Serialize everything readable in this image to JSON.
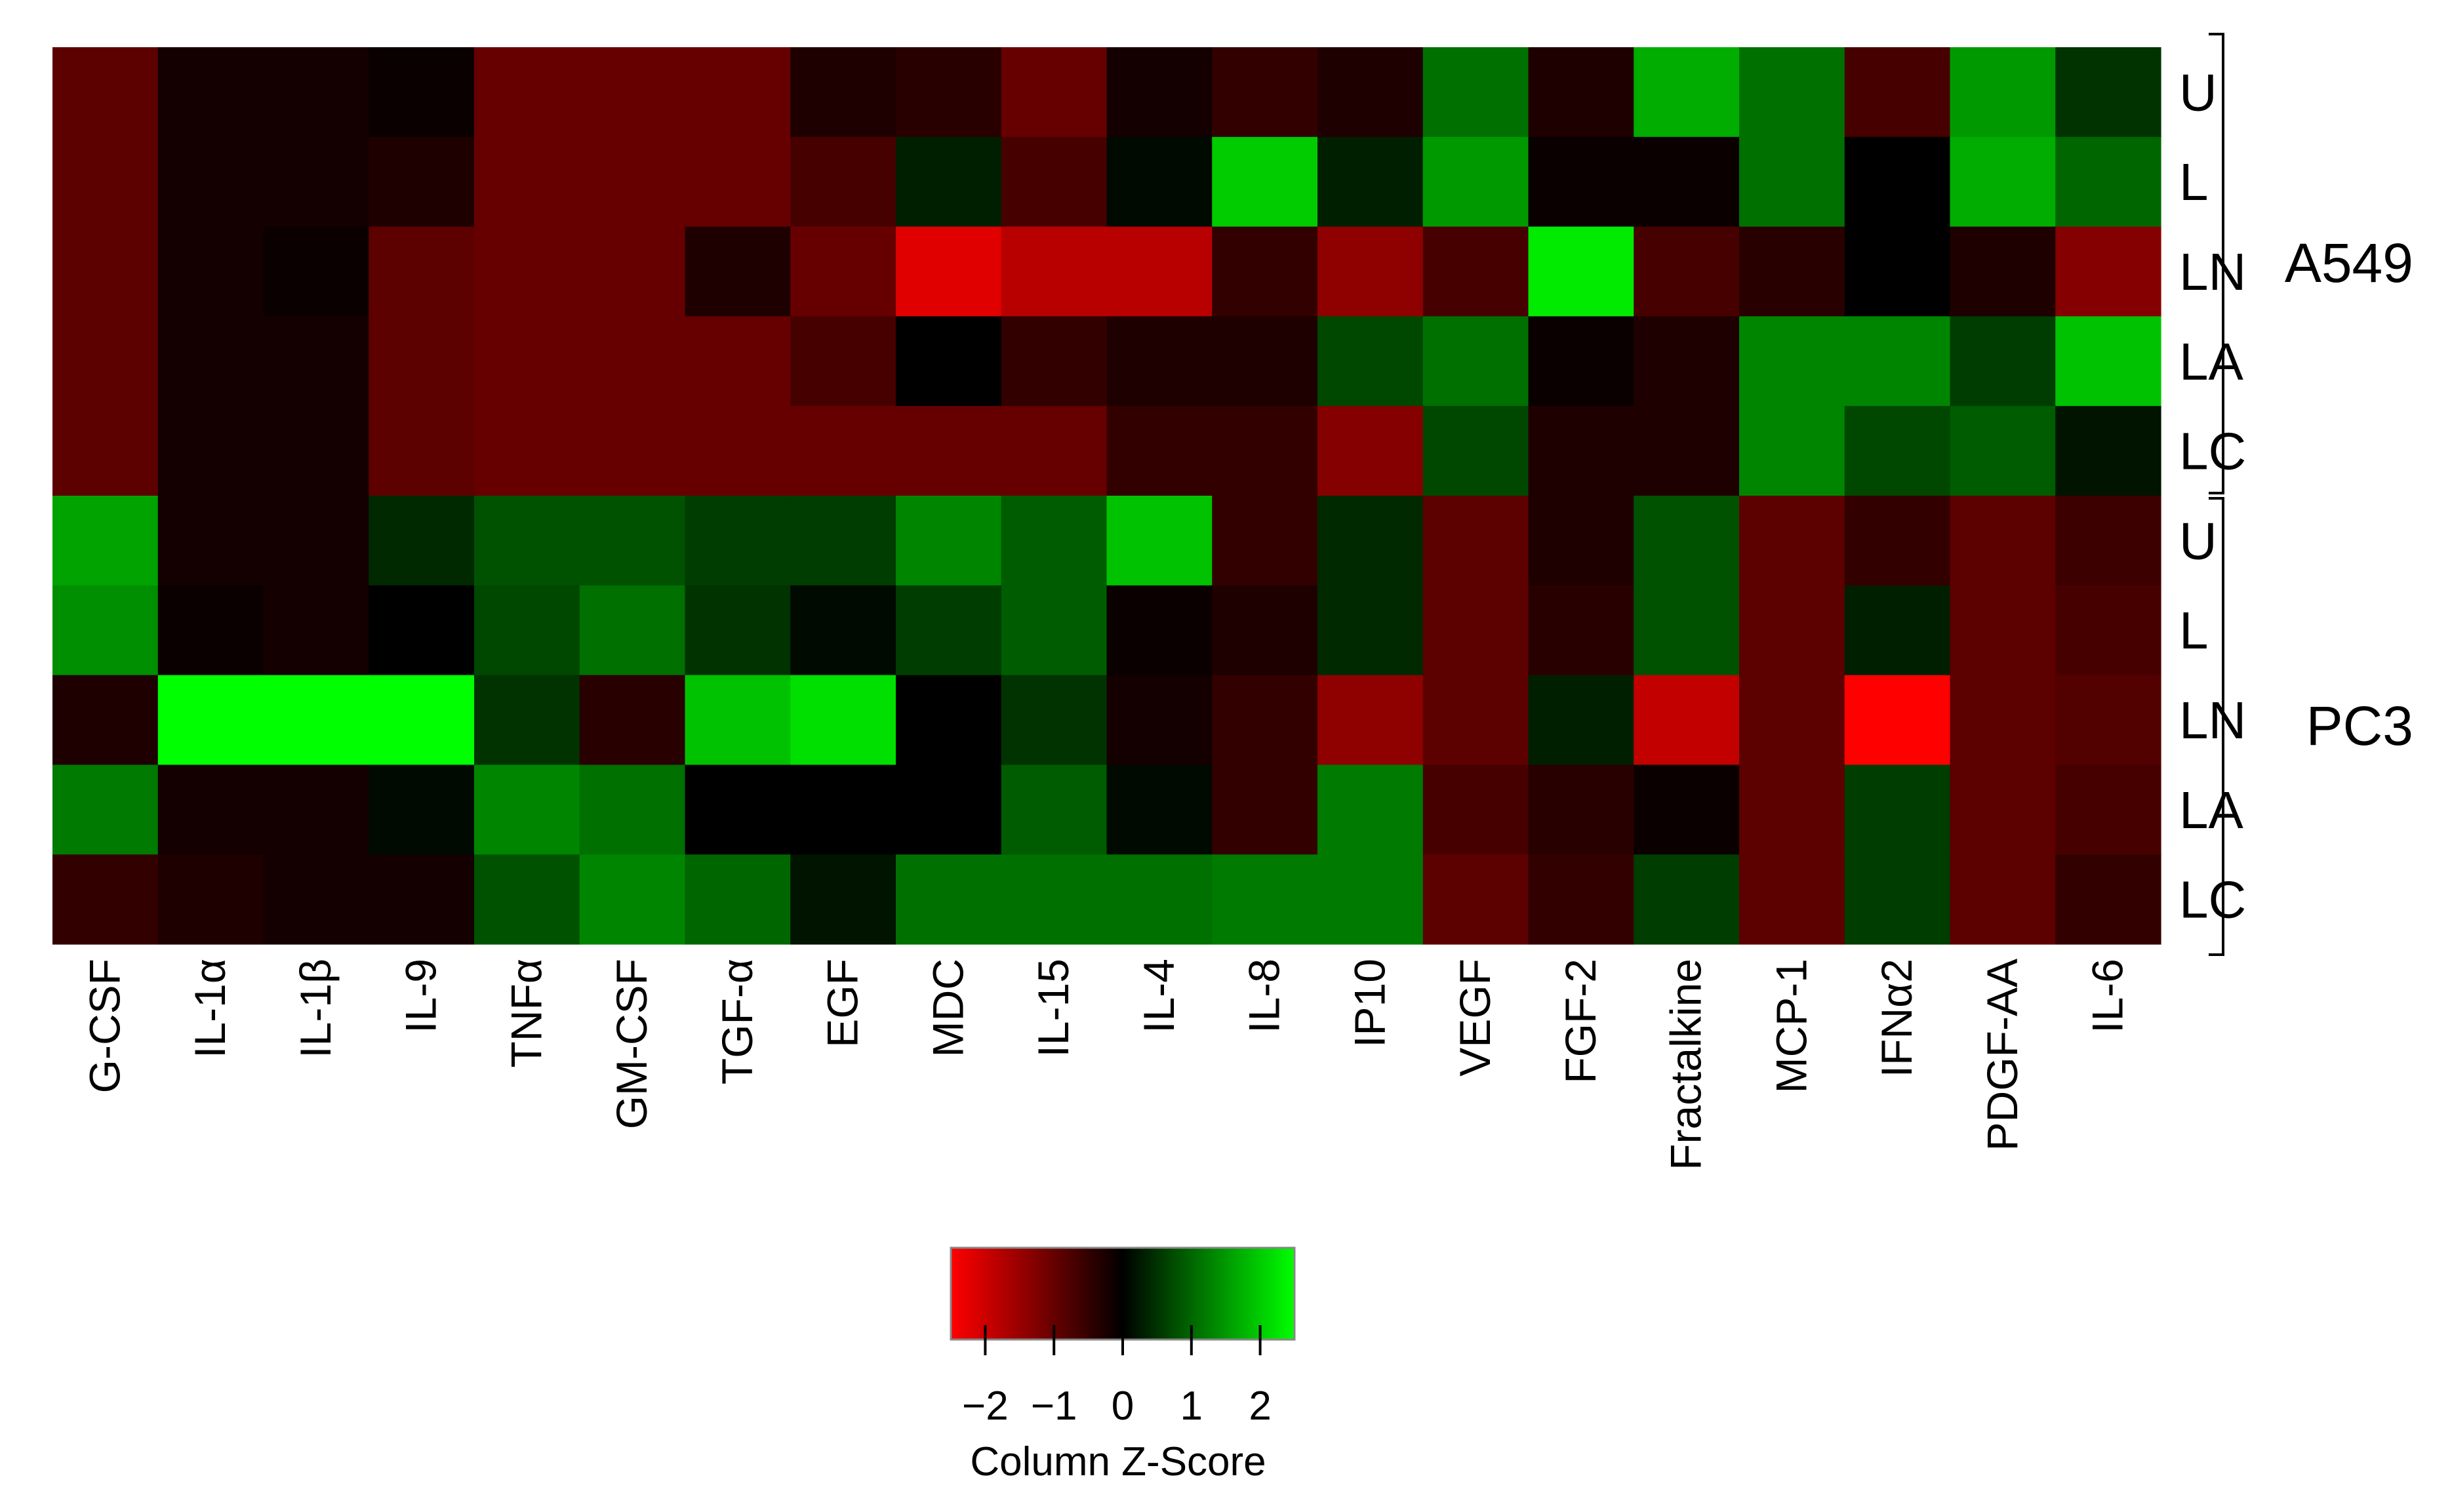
{
  "chart_data": {
    "type": "heatmap",
    "columns": [
      "G-CSF",
      "IL-1α",
      "IL-1β",
      "IL-9",
      "TNFα",
      "GM-CSF",
      "TGF-α",
      "EGF",
      "MDC",
      "IL-15",
      "IL-4",
      "IL-8",
      "IP10",
      "VEGF",
      "FGF-2",
      "Fractalkine",
      "MCP-1",
      "IFNα2",
      "PDGF-AA",
      "IL-6"
    ],
    "rows": [
      "U",
      "L",
      "LN",
      "LA",
      "LC",
      "U",
      "L",
      "LN",
      "LA",
      "LC"
    ],
    "groups": [
      {
        "name": "A549",
        "rows": [
          0,
          1,
          2,
          3,
          4
        ]
      },
      {
        "name": "PC3",
        "rows": [
          5,
          6,
          7,
          8,
          9
        ]
      }
    ],
    "values": [
      [
        -0.9,
        -0.2,
        -0.2,
        -0.1,
        -1.0,
        -1.0,
        -1.0,
        -0.3,
        -0.4,
        -1.0,
        -0.2,
        -0.5,
        -0.3,
        1.1,
        -0.3,
        1.7,
        1.1,
        -0.7,
        1.5,
        0.5
      ],
      [
        -0.9,
        -0.2,
        -0.2,
        -0.3,
        -1.0,
        -1.0,
        -1.0,
        -0.7,
        0.3,
        -0.7,
        0.1,
        2.0,
        0.3,
        1.5,
        -0.1,
        -0.1,
        1.1,
        0.0,
        1.7,
        1.0
      ],
      [
        -0.9,
        -0.2,
        -0.1,
        -0.9,
        -1.0,
        -1.0,
        -0.3,
        -1.0,
        -2.2,
        -1.8,
        -1.8,
        -0.5,
        -1.4,
        -0.7,
        2.3,
        -0.7,
        -0.4,
        0.0,
        -0.3,
        -1.3
      ],
      [
        -0.9,
        -0.2,
        -0.2,
        -0.9,
        -1.0,
        -1.0,
        -1.0,
        -0.7,
        0.0,
        -0.5,
        -0.3,
        -0.3,
        0.7,
        1.1,
        -0.1,
        -0.3,
        1.3,
        1.3,
        0.6,
        1.9
      ],
      [
        -0.9,
        -0.2,
        -0.2,
        -0.9,
        -1.0,
        -1.0,
        -1.0,
        -1.0,
        -1.0,
        -1.0,
        -0.5,
        -0.5,
        -1.3,
        0.7,
        -0.3,
        -0.3,
        1.3,
        0.7,
        0.9,
        0.2
      ],
      [
        1.6,
        -0.2,
        -0.2,
        0.4,
        0.8,
        0.8,
        0.6,
        0.6,
        1.3,
        0.9,
        1.9,
        -0.5,
        0.4,
        -0.9,
        -0.3,
        0.8,
        -0.9,
        -0.5,
        -0.9,
        -0.6
      ],
      [
        1.4,
        -0.1,
        -0.2,
        0.0,
        0.7,
        1.1,
        0.5,
        0.1,
        0.6,
        0.9,
        -0.1,
        -0.3,
        0.4,
        -0.9,
        -0.4,
        0.8,
        -0.9,
        0.3,
        -0.9,
        -0.7
      ],
      [
        -0.3,
        2.5,
        2.5,
        2.5,
        0.5,
        -0.4,
        1.9,
        2.2,
        0.0,
        0.5,
        -0.2,
        -0.5,
        -1.4,
        -0.9,
        0.3,
        -1.9,
        -0.9,
        -2.5,
        -0.9,
        -0.8
      ],
      [
        1.2,
        -0.2,
        -0.2,
        0.1,
        1.3,
        1.1,
        0.0,
        0.0,
        0.0,
        0.9,
        0.1,
        -0.5,
        1.2,
        -0.7,
        -0.4,
        -0.1,
        -0.9,
        0.6,
        -0.9,
        -0.7
      ],
      [
        -0.5,
        -0.3,
        -0.2,
        -0.2,
        0.8,
        1.3,
        1.0,
        0.2,
        1.1,
        1.1,
        1.1,
        1.2,
        1.2,
        -0.9,
        -0.5,
        0.6,
        -0.9,
        0.6,
        -0.9,
        -0.5
      ]
    ],
    "colorbar": {
      "title": "Column Z-Score",
      "range": [
        -2.5,
        2.5
      ],
      "ticks": [
        -2,
        -1,
        0,
        1,
        2
      ],
      "tick_labels": [
        "−2",
        "−1",
        "0",
        "1",
        "2"
      ],
      "low_color": "#ff0000",
      "mid_color": "#000000",
      "high_color": "#00ff00"
    }
  }
}
